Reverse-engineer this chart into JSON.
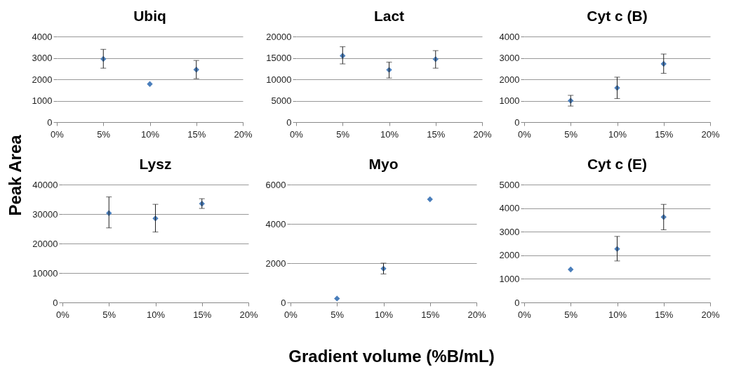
{
  "chart_data": [
    {
      "type": "scatter",
      "title": "Ubiq",
      "ylabel": "Peak Area",
      "x": [
        5,
        10,
        15
      ],
      "values": [
        2950,
        1780,
        2450
      ],
      "errors": [
        [
          2520,
          3400
        ],
        null,
        [
          2030,
          2880
        ]
      ],
      "color": "#4a7ebb",
      "marker": "diamond",
      "grid": "y",
      "xlim": [
        0,
        20
      ],
      "xticks": [
        {
          "value": 0,
          "label": "0%"
        },
        {
          "value": 5,
          "label": "5%"
        },
        {
          "value": 10,
          "label": "10%"
        },
        {
          "value": 15,
          "label": "15%"
        },
        {
          "value": 20,
          "label": "20%"
        }
      ],
      "ylim": [
        0,
        4000
      ],
      "yticks": [
        0,
        1000,
        2000,
        3000,
        4000
      ]
    },
    {
      "type": "scatter",
      "title": "Lact",
      "x": [
        5,
        10,
        15
      ],
      "values": [
        15500,
        12200,
        14700
      ],
      "errors": [
        [
          13600,
          17600
        ],
        [
          10300,
          14000
        ],
        [
          12600,
          16700
        ]
      ],
      "color": "#4a7ebb",
      "marker": "diamond",
      "grid": "y",
      "xlim": [
        0,
        20
      ],
      "xticks": [
        {
          "value": 0,
          "label": "0%"
        },
        {
          "value": 5,
          "label": "5%"
        },
        {
          "value": 10,
          "label": "10%"
        },
        {
          "value": 15,
          "label": "15%"
        },
        {
          "value": 20,
          "label": "20%"
        }
      ],
      "ylim": [
        0,
        20000
      ],
      "yticks": [
        0,
        5000,
        10000,
        15000,
        20000
      ]
    },
    {
      "type": "scatter",
      "title": "Cyt c (B)",
      "x": [
        5,
        10,
        15
      ],
      "values": [
        1000,
        1600,
        2720
      ],
      "errors": [
        [
          750,
          1250
        ],
        [
          1100,
          2100
        ],
        [
          2280,
          3180
        ]
      ],
      "color": "#4a7ebb",
      "marker": "diamond",
      "grid": "y",
      "xlim": [
        0,
        20
      ],
      "xticks": [
        {
          "value": 0,
          "label": "0%"
        },
        {
          "value": 5,
          "label": "5%"
        },
        {
          "value": 10,
          "label": "10%"
        },
        {
          "value": 15,
          "label": "15%"
        },
        {
          "value": 20,
          "label": "20%"
        }
      ],
      "ylim": [
        0,
        4000
      ],
      "yticks": [
        0,
        1000,
        2000,
        3000,
        4000
      ]
    },
    {
      "type": "scatter",
      "title": "Lysz",
      "x": [
        5,
        10,
        15
      ],
      "values": [
        30300,
        28500,
        33500
      ],
      "errors": [
        [
          25300,
          35800
        ],
        [
          23900,
          33300
        ],
        [
          31900,
          35200
        ]
      ],
      "color": "#4a7ebb",
      "marker": "diamond",
      "grid": "y",
      "xlim": [
        0,
        20
      ],
      "xticks": [
        {
          "value": 0,
          "label": "0%"
        },
        {
          "value": 5,
          "label": "5%"
        },
        {
          "value": 10,
          "label": "10%"
        },
        {
          "value": 15,
          "label": "15%"
        },
        {
          "value": 20,
          "label": "20%"
        }
      ],
      "ylim": [
        0,
        40000
      ],
      "yticks": [
        0,
        10000,
        20000,
        30000,
        40000
      ]
    },
    {
      "type": "scatter",
      "title": "Myo",
      "xlabel": "Gradient volume (%B/mL)",
      "x": [
        5,
        10,
        15
      ],
      "values": [
        200,
        1720,
        5250
      ],
      "errors": [
        null,
        [
          1450,
          2000
        ],
        null
      ],
      "color": "#4a7ebb",
      "marker": "diamond",
      "grid": "y",
      "xlim": [
        0,
        20
      ],
      "xticks": [
        {
          "value": 0,
          "label": "0%"
        },
        {
          "value": 5,
          "label": "5%"
        },
        {
          "value": 10,
          "label": "10%"
        },
        {
          "value": 15,
          "label": "15%"
        },
        {
          "value": 20,
          "label": "20%"
        }
      ],
      "ylim": [
        0,
        6000
      ],
      "yticks": [
        0,
        2000,
        4000,
        6000
      ]
    },
    {
      "type": "scatter",
      "title": "Cyt c (E)",
      "x": [
        5,
        10,
        15
      ],
      "values": [
        1400,
        2270,
        3620
      ],
      "errors": [
        null,
        [
          1760,
          2800
        ],
        [
          3080,
          4160
        ]
      ],
      "color": "#4a7ebb",
      "marker": "diamond",
      "grid": "y",
      "xlim": [
        0,
        20
      ],
      "xticks": [
        {
          "value": 0,
          "label": "0%"
        },
        {
          "value": 5,
          "label": "5%"
        },
        {
          "value": 10,
          "label": "10%"
        },
        {
          "value": 15,
          "label": "15%"
        },
        {
          "value": 20,
          "label": "20%"
        }
      ],
      "ylim": [
        0,
        5000
      ],
      "yticks": [
        0,
        1000,
        2000,
        3000,
        4000,
        5000
      ]
    }
  ]
}
